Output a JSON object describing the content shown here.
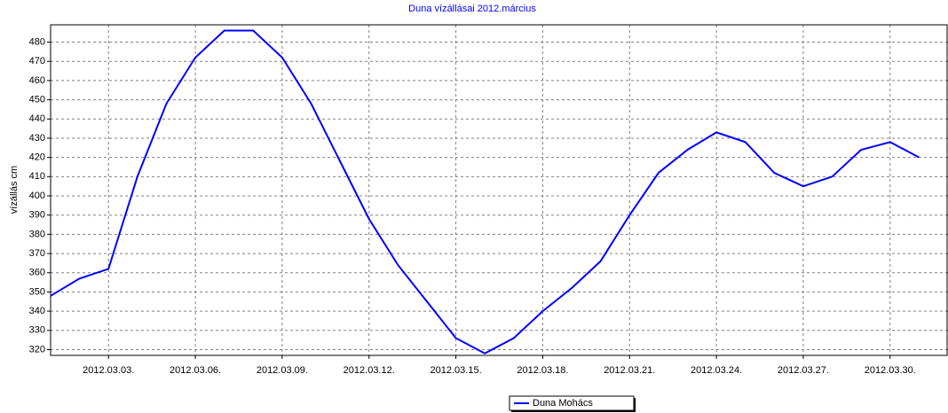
{
  "chart_data": {
    "type": "line",
    "title": "Duna vízállásai 2012.március",
    "y_label": "vízállás cm",
    "x": [
      "2012-03-01",
      "2012-03-02",
      "2012-03-03",
      "2012-03-04",
      "2012-03-05",
      "2012-03-06",
      "2012-03-07",
      "2012-03-08",
      "2012-03-09",
      "2012-03-10",
      "2012-03-11",
      "2012-03-12",
      "2012-03-13",
      "2012-03-14",
      "2012-03-15",
      "2012-03-16",
      "2012-03-17",
      "2012-03-18",
      "2012-03-19",
      "2012-03-20",
      "2012-03-21",
      "2012-03-22",
      "2012-03-23",
      "2012-03-24",
      "2012-03-25",
      "2012-03-26",
      "2012-03-27",
      "2012-03-28",
      "2012-03-29",
      "2012-03-30",
      "2012-03-31"
    ],
    "series": [
      {
        "name": "Duna Mohács",
        "color": "#0000ff",
        "values": [
          348,
          357,
          362,
          410,
          448,
          472,
          486,
          486,
          472,
          448,
          418,
          388,
          364,
          345,
          326,
          318,
          326,
          340,
          352,
          366,
          390,
          412,
          424,
          433,
          428,
          412,
          405,
          410,
          424,
          428,
          420
        ]
      }
    ],
    "xlim": [
      "2012-03-01",
      "2012-04-01"
    ],
    "xticks": [
      {
        "value": "2012-03-03",
        "label": "2012.03.03."
      },
      {
        "value": "2012-03-06",
        "label": "2012.03.06."
      },
      {
        "value": "2012-03-09",
        "label": "2012.03.09."
      },
      {
        "value": "2012-03-12",
        "label": "2012.03.12."
      },
      {
        "value": "2012-03-15",
        "label": "2012.03.15."
      },
      {
        "value": "2012-03-18",
        "label": "2012.03.18."
      },
      {
        "value": "2012-03-21",
        "label": "2012.03.21."
      },
      {
        "value": "2012-03-24",
        "label": "2012.03.24."
      },
      {
        "value": "2012-03-27",
        "label": "2012.03.27."
      },
      {
        "value": "2012-03-30",
        "label": "2012.03.30."
      }
    ],
    "ylim": [
      317,
      489
    ],
    "yticks": [
      320,
      330,
      340,
      350,
      360,
      370,
      380,
      390,
      400,
      410,
      420,
      430,
      440,
      450,
      460,
      470,
      480
    ],
    "grid": true,
    "legend": "bottom"
  }
}
